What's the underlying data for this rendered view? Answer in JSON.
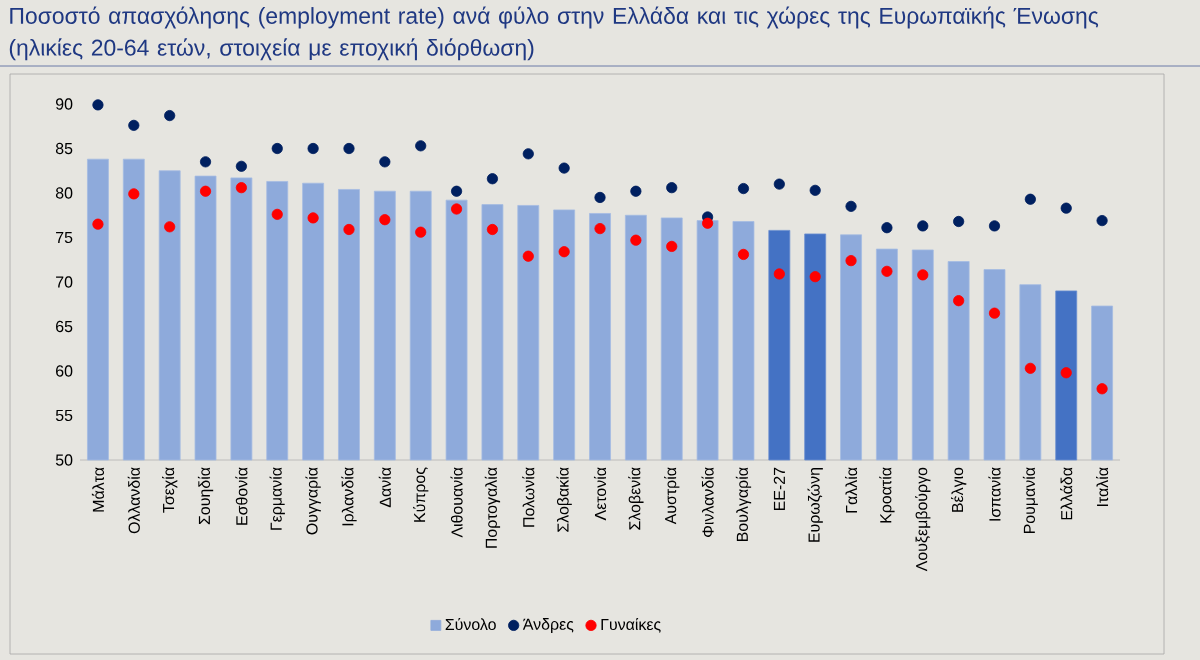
{
  "chart_data": {
    "type": "bar",
    "title": "Ποσοστό απασχόλησης (employment rate) ανά φύλο στην Ελλάδα και τις χώρες της Ευρωπαϊκής Ένωσης (ηλικίες 20-64 ετών, στοιχεία με εποχική διόρθωση)",
    "categories": [
      "Μάλτα",
      "Ολλανδία",
      "Τσεχία",
      "Σουηδία",
      "Εσθονία",
      "Γερμανία",
      "Ουγγαρία",
      "Ιρλανδία",
      "Δανία",
      "Κύπρος",
      "Λιθουανία",
      "Πορτογαλία",
      "Πολωνία",
      "Σλοβακία",
      "Λετονία",
      "Σλοβενία",
      "Αυστρία",
      "Φινλανδία",
      "Βουλγαρία",
      "ΕΕ-27",
      "Ευρωζώνη",
      "Γαλλία",
      "Κροατία",
      "Λουξεμβούργο",
      "Βέλγιο",
      "Ισπανία",
      "Ρουμανία",
      "Ελλάδα",
      "Ιταλία"
    ],
    "series": [
      {
        "name": "Σύνολο",
        "color": "#8eaadb",
        "colors": [
          "#8eaadb",
          "#8eaadb",
          "#8eaadb",
          "#8eaadb",
          "#8eaadb",
          "#8eaadb",
          "#8eaadb",
          "#8eaadb",
          "#8eaadb",
          "#8eaadb",
          "#8eaadb",
          "#8eaadb",
          "#8eaadb",
          "#8eaadb",
          "#8eaadb",
          "#8eaadb",
          "#8eaadb",
          "#8eaadb",
          "#8eaadb",
          "#4472c4",
          "#4472c4",
          "#8eaadb",
          "#8eaadb",
          "#8eaadb",
          "#8eaadb",
          "#8eaadb",
          "#8eaadb",
          "#4472c4",
          "#8eaadb"
        ],
        "values": [
          83.8,
          83.8,
          82.5,
          81.9,
          81.7,
          81.3,
          81.1,
          80.4,
          80.2,
          80.2,
          79.2,
          78.7,
          78.6,
          78.1,
          77.7,
          77.5,
          77.2,
          76.9,
          76.8,
          75.8,
          75.4,
          75.3,
          73.7,
          73.6,
          72.3,
          71.4,
          69.7,
          69.0,
          67.3
        ]
      },
      {
        "name": "Άνδρες",
        "type": "scatter",
        "color": "#002060",
        "values": [
          89.9,
          87.6,
          88.7,
          83.5,
          83.0,
          85.0,
          85.0,
          85.0,
          83.5,
          85.3,
          80.2,
          81.6,
          84.4,
          82.8,
          79.5,
          80.2,
          80.6,
          77.3,
          80.5,
          81.0,
          80.3,
          78.5,
          76.1,
          76.3,
          76.8,
          76.3,
          79.3,
          78.3,
          76.9
        ]
      },
      {
        "name": "Γυναίκες",
        "type": "scatter",
        "color": "#ff0000",
        "values": [
          76.5,
          79.9,
          76.2,
          80.2,
          80.6,
          77.6,
          77.2,
          75.9,
          77.0,
          75.6,
          78.2,
          75.9,
          72.9,
          73.4,
          76.0,
          74.7,
          74.0,
          76.6,
          73.1,
          70.9,
          70.6,
          72.4,
          71.2,
          70.8,
          67.9,
          66.5,
          60.3,
          59.8,
          58.0
        ]
      }
    ],
    "ylim": [
      50,
      90
    ],
    "yticks": [
      50,
      55,
      60,
      65,
      70,
      75,
      80,
      85,
      90
    ],
    "marker": "circle",
    "legend": "bottom"
  }
}
